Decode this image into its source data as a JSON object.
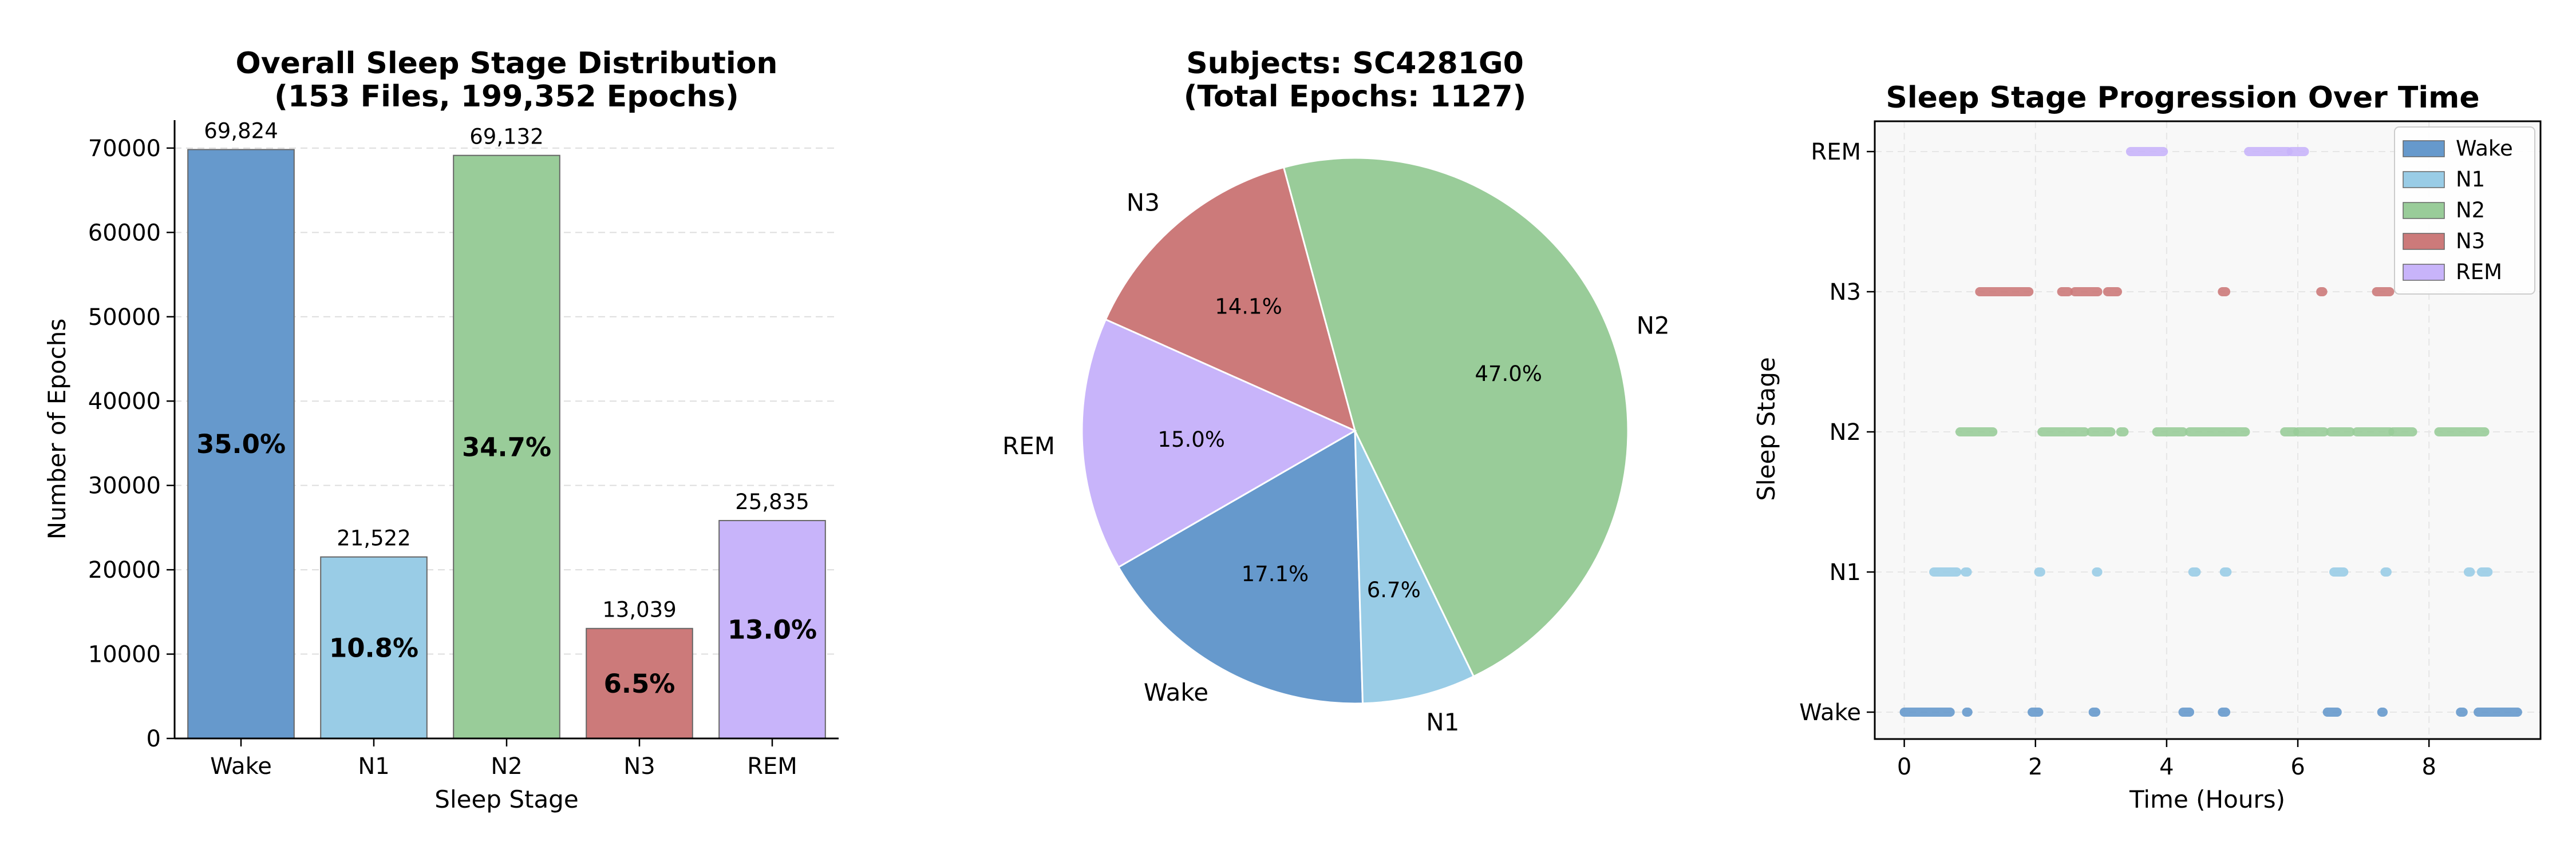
{
  "colors": {
    "Wake": "#6699cc",
    "N1": "#99cce6",
    "N2": "#99cc99",
    "N3": "#cc7a7a",
    "REM": "#c8b4fa"
  },
  "chart_data": [
    {
      "type": "bar",
      "title": [
        "Overall Sleep Stage Distribution",
        "(153 Files, 199,352 Epochs)"
      ],
      "xlabel": "Sleep Stage",
      "ylabel": "Number of Epochs",
      "categories": [
        "Wake",
        "N1",
        "N2",
        "N3",
        "REM"
      ],
      "values": [
        69824,
        21522,
        69132,
        13039,
        25835
      ],
      "value_labels": [
        "69,824",
        "21,522",
        "69,132",
        "13,039",
        "25,835"
      ],
      "percent_labels": [
        "35.0%",
        "10.8%",
        "34.7%",
        "6.5%",
        "13.0%"
      ],
      "ylim": [
        0,
        73315
      ],
      "yticks": [
        0,
        10000,
        20000,
        30000,
        40000,
        50000,
        60000,
        70000
      ],
      "grid": "y"
    },
    {
      "type": "pie",
      "title": [
        "Subjects: SC4281G0",
        "(Total Epochs: 1127)"
      ],
      "slices": [
        {
          "label": "Wake",
          "percent_label": "17.1%",
          "value": 17.1
        },
        {
          "label": "N1",
          "percent_label": "6.7%",
          "value": 6.7
        },
        {
          "label": "N2",
          "percent_label": "47.0%",
          "value": 47.0
        },
        {
          "label": "N3",
          "percent_label": "14.1%",
          "value": 14.1
        },
        {
          "label": "REM",
          "percent_label": "15.0%",
          "value": 15.0
        }
      ]
    },
    {
      "type": "scatter",
      "title": "Sleep Stage Progression Over Time",
      "xlabel": "Time (Hours)",
      "ylabel": "Sleep Stage",
      "xlim": [
        -0.45,
        9.7
      ],
      "xticks": [
        0,
        2,
        4,
        6,
        8
      ],
      "yticks": [
        "Wake",
        "N1",
        "N2",
        "N3",
        "REM"
      ],
      "grid": true,
      "legend": "top-right",
      "series": [
        {
          "name": "Wake",
          "segments": [
            [
              0,
              0.7
            ],
            [
              0.95,
              0.97
            ],
            [
              1.95,
              2.05
            ],
            [
              2.88,
              2.92
            ],
            [
              4.25,
              4.35
            ],
            [
              4.85,
              4.9
            ],
            [
              6.45,
              6.6
            ],
            [
              7.28,
              7.3
            ],
            [
              8.48,
              8.52
            ],
            [
              8.75,
              9.35
            ]
          ]
        },
        {
          "name": "N1",
          "segments": [
            [
              0.45,
              0.8
            ],
            [
              0.93,
              0.96
            ],
            [
              2.05,
              2.08
            ],
            [
              2.93,
              2.95
            ],
            [
              4.4,
              4.45
            ],
            [
              4.88,
              4.92
            ],
            [
              6.55,
              6.7
            ],
            [
              7.33,
              7.36
            ],
            [
              8.6,
              8.63
            ],
            [
              8.8,
              8.9
            ]
          ]
        },
        {
          "name": "N2",
          "segments": [
            [
              0.85,
              1.35
            ],
            [
              2.1,
              2.75
            ],
            [
              2.85,
              3.15
            ],
            [
              3.3,
              3.35
            ],
            [
              3.85,
              4.25
            ],
            [
              4.35,
              5.2
            ],
            [
              5.8,
              5.95
            ],
            [
              6.0,
              6.4
            ],
            [
              6.5,
              6.8
            ],
            [
              6.9,
              7.4
            ],
            [
              7.45,
              7.75
            ],
            [
              8.15,
              8.85
            ]
          ]
        },
        {
          "name": "N3",
          "segments": [
            [
              1.15,
              1.9
            ],
            [
              2.4,
              2.5
            ],
            [
              2.6,
              2.95
            ],
            [
              3.1,
              3.25
            ],
            [
              4.85,
              4.9
            ],
            [
              6.35,
              6.38
            ],
            [
              7.2,
              7.4
            ]
          ]
        },
        {
          "name": "REM",
          "segments": [
            [
              3.45,
              3.95
            ],
            [
              5.25,
              5.85
            ],
            [
              5.9,
              6.1
            ]
          ]
        }
      ]
    }
  ]
}
